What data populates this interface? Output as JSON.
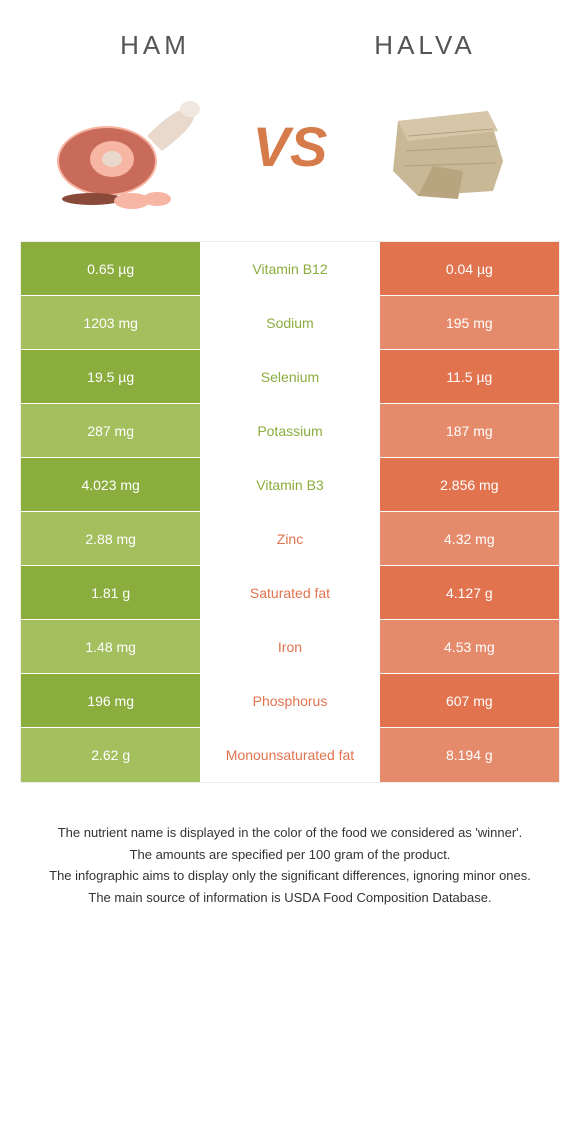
{
  "colors": {
    "green": "#8aad3e",
    "orange": "#e1734f",
    "green_light": "#a3bf5e",
    "orange_light": "#e58a6a",
    "mid_green_text": "#8aad3e",
    "mid_orange_text": "#e1734f"
  },
  "header": {
    "left_title": "Ham",
    "right_title": "Halva",
    "vs": "VS"
  },
  "rows": [
    {
      "label": "Vitamin B12",
      "left": "0.65 µg",
      "right": "0.04 µg",
      "winner": "left"
    },
    {
      "label": "Sodium",
      "left": "1203 mg",
      "right": "195 mg",
      "winner": "left"
    },
    {
      "label": "Selenium",
      "left": "19.5 µg",
      "right": "11.5 µg",
      "winner": "left"
    },
    {
      "label": "Potassium",
      "left": "287 mg",
      "right": "187 mg",
      "winner": "left"
    },
    {
      "label": "Vitamin B3",
      "left": "4.023 mg",
      "right": "2.856 mg",
      "winner": "left"
    },
    {
      "label": "Zinc",
      "left": "2.88 mg",
      "right": "4.32 mg",
      "winner": "right"
    },
    {
      "label": "Saturated fat",
      "left": "1.81 g",
      "right": "4.127 g",
      "winner": "right"
    },
    {
      "label": "Iron",
      "left": "1.48 mg",
      "right": "4.53 mg",
      "winner": "right"
    },
    {
      "label": "Phosphorus",
      "left": "196 mg",
      "right": "607 mg",
      "winner": "right"
    },
    {
      "label": "Monounsaturated fat",
      "left": "2.62 g",
      "right": "8.194 g",
      "winner": "right"
    }
  ],
  "footnotes": [
    "The nutrient name is displayed in the color of the food we considered as 'winner'.",
    "The amounts are specified per 100 gram of the product.",
    "The infographic aims to display only the significant differences, ignoring minor ones.",
    "The main source of information is USDA Food Composition Database."
  ]
}
